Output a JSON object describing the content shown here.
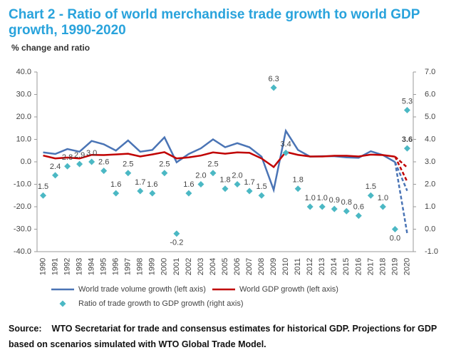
{
  "chart_data": {
    "type": "line",
    "title": "Chart 2 - Ratio of world merchandise trade growth to world GDP growth, 1990-2020",
    "title_lines": [
      "Chart 2 - Ratio of world merchandise trade growth to world GDP",
      "growth, 1990-2020"
    ],
    "subtitle": "% change and ratio",
    "categories": [
      "1990",
      "1991",
      "1992",
      "1993",
      "1994",
      "1995",
      "1996",
      "1997",
      "1998",
      "1999",
      "2000",
      "2001",
      "2002",
      "2003",
      "2004",
      "2005",
      "2006",
      "2007",
      "2008",
      "2009",
      "2010",
      "2011",
      "2012",
      "2013",
      "2014",
      "2015",
      "2016",
      "2017",
      "2018",
      "2019",
      "2020"
    ],
    "ylim": [
      -40,
      40
    ],
    "yticks": [
      {
        "value": -40,
        "label": "-40.0"
      },
      {
        "value": -30,
        "label": "-30.0"
      },
      {
        "value": -20,
        "label": "-20.0"
      },
      {
        "value": -10,
        "label": "-10.0"
      },
      {
        "value": 0,
        "label": "0.0"
      },
      {
        "value": 10,
        "label": "10.0"
      },
      {
        "value": 20,
        "label": "20.0"
      },
      {
        "value": 30,
        "label": "30.0"
      },
      {
        "value": 40,
        "label": "40.0"
      }
    ],
    "y2lim": [
      -1,
      7
    ],
    "y2ticks": [
      {
        "value": -1,
        "label": "-1.0"
      },
      {
        "value": 0,
        "label": "0.0"
      },
      {
        "value": 1,
        "label": "1.0"
      },
      {
        "value": 2,
        "label": "2.0"
      },
      {
        "value": 3,
        "label": "3.0"
      },
      {
        "value": 4,
        "label": "4.0"
      },
      {
        "value": 5,
        "label": "5.0"
      },
      {
        "value": 6,
        "label": "6.0"
      },
      {
        "value": 7,
        "label": "7.0"
      }
    ],
    "series": [
      {
        "name": "World trade volume growth (left axis)",
        "color": "#4a74b5",
        "kind": "line",
        "values": [
          4.2,
          3.5,
          5.7,
          4.5,
          9.3,
          7.8,
          5.0,
          9.5,
          4.5,
          5.3,
          10.9,
          -0.2,
          3.5,
          6.0,
          10.0,
          6.5,
          8.3,
          6.5,
          2.3,
          -12.5,
          13.8,
          5.3,
          2.3,
          2.5,
          2.5,
          2.0,
          1.8,
          4.7,
          3.0,
          -0.1,
          null
        ],
        "scenarios": [
          -12.9,
          -31.9
        ]
      },
      {
        "name": "World GDP growth (left axis)",
        "color": "#c00000",
        "kind": "line",
        "values": [
          2.8,
          1.5,
          1.9,
          1.5,
          3.1,
          3.0,
          3.3,
          3.6,
          2.4,
          3.3,
          4.3,
          1.5,
          2.0,
          2.8,
          4.2,
          3.6,
          4.2,
          4.0,
          1.5,
          -2.3,
          4.4,
          3.1,
          2.4,
          2.4,
          2.7,
          2.7,
          2.4,
          3.2,
          3.0,
          2.3,
          null
        ],
        "scenarios": [
          -2.5,
          -8.8
        ]
      },
      {
        "name": "Ratio of trade growth to GDP growth (right axis)",
        "color": "#4bb8c4",
        "kind": "marker",
        "axis": "y2",
        "values": [
          1.5,
          2.4,
          2.8,
          2.9,
          3.0,
          2.6,
          1.6,
          2.5,
          1.7,
          1.6,
          2.5,
          -0.2,
          1.6,
          2.0,
          2.5,
          1.8,
          2.0,
          1.7,
          1.5,
          6.3,
          3.4,
          1.8,
          1.0,
          1.0,
          0.9,
          0.8,
          0.6,
          1.5,
          1.0,
          0.0,
          null
        ],
        "value_labels": [
          "1.5",
          "2.4",
          "2.8",
          "2.9",
          "3.0",
          "2.6",
          "1.6",
          "2.5",
          "1.7",
          "1.6",
          "2.5",
          "-0.2",
          "1.6",
          "2.0",
          "2.5",
          "1.8",
          "2.0",
          "1.7",
          "1.5",
          "6.3",
          "3.4",
          "1.8",
          "1.0",
          "1.0",
          "0.9",
          "0.8",
          "0.6",
          "1.5",
          "1.0",
          "0.0",
          null
        ],
        "scenarios": [
          5.3,
          3.6
        ],
        "scenario_labels": [
          "5.3",
          "3.6"
        ]
      }
    ],
    "source_label": "Source:",
    "source": "WTO Secretariat for trade and consensus estimates for historical GDP. Projections for GDP based on scenarios simulated with WTO Global Trade Model."
  }
}
